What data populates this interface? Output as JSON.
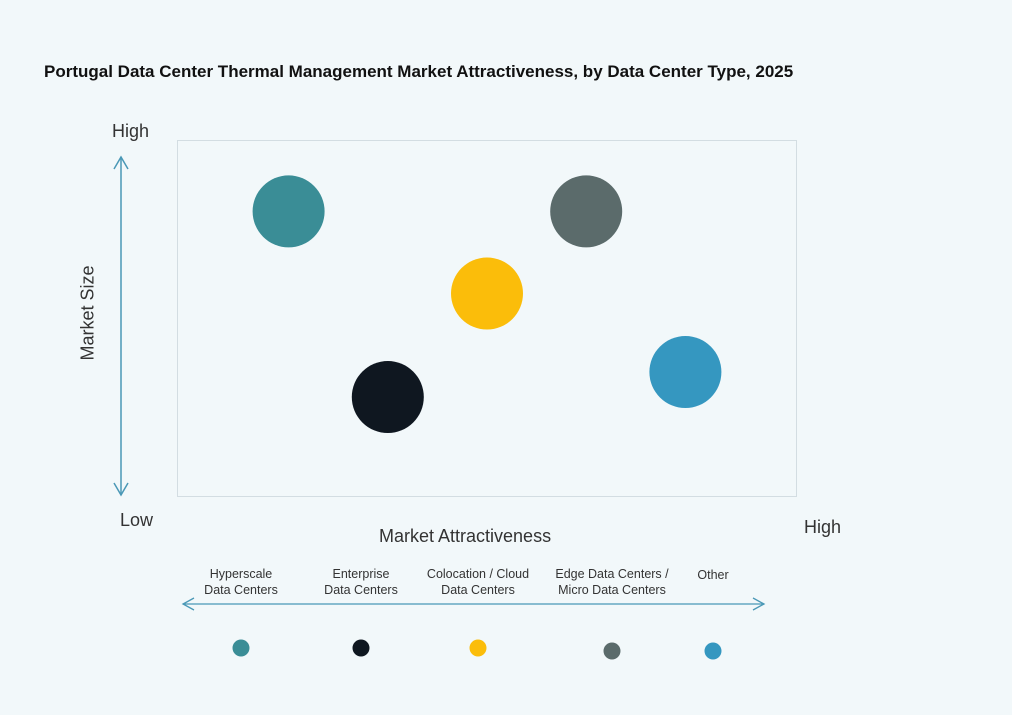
{
  "chart_data": {
    "type": "scatter",
    "title": "Portugal Data Center Thermal Management Market Attractiveness,  by Data Center Type, 2025",
    "xlabel": "Market Attractiveness",
    "ylabel": "Market Size",
    "x_low_label": "Low",
    "x_high_label": "High",
    "y_high_label": "High",
    "y_low_label": "Low",
    "xlim": [
      0,
      10
    ],
    "ylim": [
      0,
      10
    ],
    "points": [
      {
        "name": "Hyperscale Data Centers",
        "label_lines": [
          "Hyperscale",
          "Data Centers"
        ],
        "x": 1.8,
        "y": 8.0,
        "color": "#3a8d96"
      },
      {
        "name": "Enterprise Data Centers",
        "label_lines": [
          "Enterprise",
          "Data Centers"
        ],
        "x": 3.4,
        "y": 2.8,
        "color": "#0f1720"
      },
      {
        "name": "Colocation / Cloud Data Centers",
        "label_lines": [
          "Colocation / Cloud",
          "Data Centers"
        ],
        "x": 5.0,
        "y": 5.7,
        "color": "#fbbd0a"
      },
      {
        "name": "Edge Data Centers / Micro Data Centers",
        "label_lines": [
          "Edge Data Centers /",
          "Micro Data Centers"
        ],
        "x": 6.6,
        "y": 8.0,
        "color": "#5b6b6b"
      },
      {
        "name": "Other",
        "label_lines": [
          "Other"
        ],
        "x": 8.2,
        "y": 3.5,
        "color": "#3597c0"
      }
    ]
  },
  "colors": {
    "axis": "#4a98b6",
    "background": "#f2f8fa"
  }
}
